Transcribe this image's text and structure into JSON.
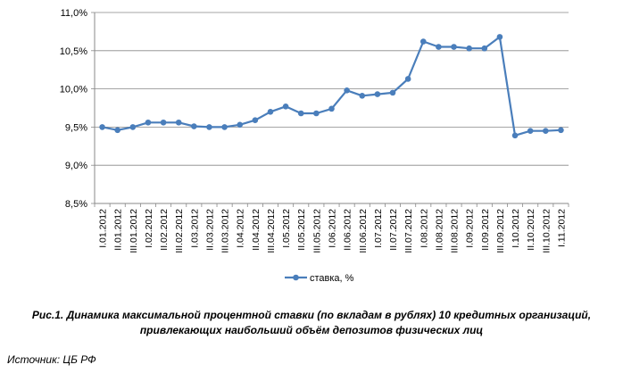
{
  "chart_data": {
    "type": "line",
    "title": "",
    "xlabel": "",
    "ylabel": "",
    "ylim": [
      8.5,
      11.0
    ],
    "yticks": [
      "8,5%",
      "9,0%",
      "9,5%",
      "10,0%",
      "10,5%",
      "11,0%"
    ],
    "grid": true,
    "legend_position": "bottom",
    "categories": [
      "I.01.2012",
      "II.01.2012",
      "III.01.2012",
      "I.02.2012",
      "II.02.2012",
      "III.02.2012",
      "I.03.2012",
      "II.03.2012",
      "III.03.2012",
      "I.04.2012",
      "II.04.2012",
      "III.04.2012",
      "I.05.2012",
      "II.05.2012",
      "III.05.2012",
      "I.06.2012",
      "II.06.2012",
      "III.06.2012",
      "I.07.2012",
      "II.07.2012",
      "III.07.2012",
      "I.08.2012",
      "II.08.2012",
      "III.08.2012",
      "I.09.2012",
      "II.09.2012",
      "III.09.2012",
      "I.10.2012",
      "II.10.2012",
      "III.10.2012",
      "I.11.2012"
    ],
    "series": [
      {
        "name": "ставка, %",
        "color": "#4a7ebb",
        "values": [
          9.5,
          9.46,
          9.5,
          9.56,
          9.56,
          9.56,
          9.51,
          9.5,
          9.5,
          9.53,
          9.59,
          9.7,
          9.77,
          9.68,
          9.68,
          9.74,
          9.98,
          9.91,
          9.93,
          9.95,
          10.13,
          10.62,
          10.55,
          10.55,
          10.53,
          10.53,
          10.68,
          9.39,
          9.45,
          9.45,
          9.46
        ]
      }
    ]
  },
  "caption": {
    "line1": "Рис.1. Динамика максимальной процентной ставки (по вкладам в рублях) 10 кредитных организаций,",
    "line2": "привлекающих наибольший объём депозитов физических лиц"
  },
  "source": "Источник: ЦБ РФ"
}
